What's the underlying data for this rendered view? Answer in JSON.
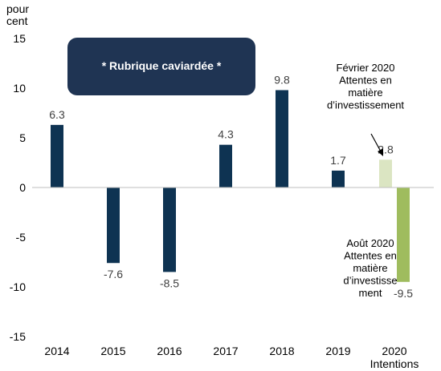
{
  "chart_data": {
    "type": "bar",
    "y_unit_label": [
      "pour",
      "cent"
    ],
    "ylim": [
      -15,
      15
    ],
    "yticks": [
      15,
      10,
      5,
      0,
      -5,
      -10,
      -15
    ],
    "grid": false,
    "categories": [
      {
        "lines": [
          "2014"
        ]
      },
      {
        "lines": [
          "2015"
        ]
      },
      {
        "lines": [
          "2016"
        ]
      },
      {
        "lines": [
          "2017"
        ]
      },
      {
        "lines": [
          "2018"
        ]
      },
      {
        "lines": [
          "2019"
        ]
      },
      {
        "lines": [
          "2020",
          "Intentions"
        ]
      }
    ],
    "bars": [
      {
        "category_index": 0,
        "value": 6.3,
        "label": "6.3",
        "color": "#0e3352"
      },
      {
        "category_index": 1,
        "value": -7.6,
        "label": "-7.6",
        "color": "#0e3352"
      },
      {
        "category_index": 2,
        "value": -8.5,
        "label": "-8.5",
        "color": "#0e3352"
      },
      {
        "category_index": 3,
        "value": 4.3,
        "label": "4.3",
        "color": "#0e3352"
      },
      {
        "category_index": 4,
        "value": 9.8,
        "label": "9.8",
        "color": "#0e3352"
      },
      {
        "category_index": 5,
        "value": 1.7,
        "label": "1.7",
        "color": "#0e3352"
      },
      {
        "category_index": 6,
        "value": 2.8,
        "label": "2.8",
        "color": "#dbe5c2",
        "slot": "left"
      },
      {
        "category_index": 6,
        "value": -9.5,
        "label": "-9.5",
        "color": "#9fbc5e",
        "slot": "right"
      }
    ],
    "annotations": {
      "feb": [
        "Février 2020",
        "Attentes en",
        "matière",
        "d’investissement"
      ],
      "aug": [
        "Août 2020",
        "Attentes en",
        "matière",
        "d’investisse",
        "ment"
      ]
    },
    "redaction": {
      "text": "* Rubrique caviardée *",
      "fill": "#1f3453"
    }
  }
}
